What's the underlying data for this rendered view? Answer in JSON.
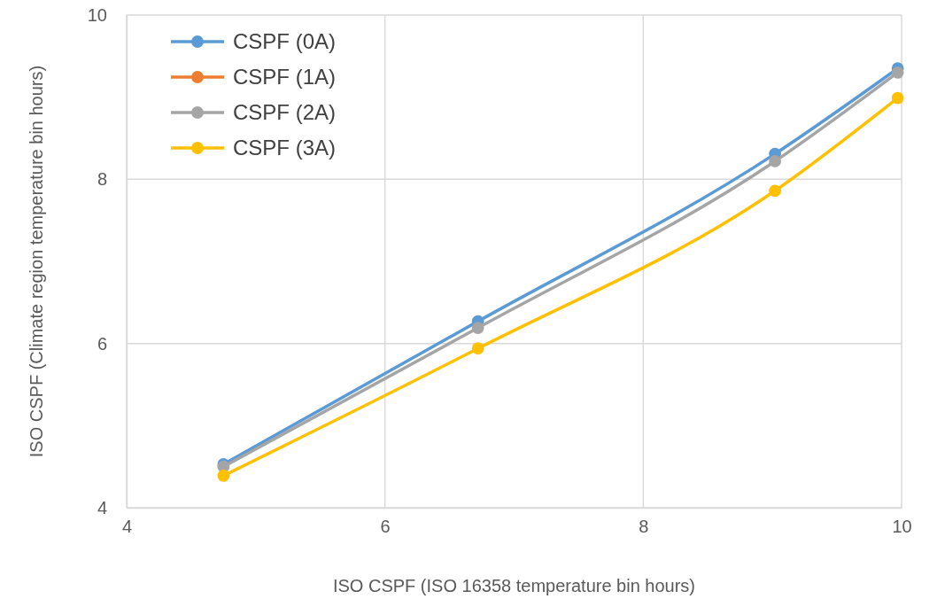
{
  "chart_data": {
    "type": "line",
    "xlabel": "ISO CSPF (ISO 16358 temperature bin hours)",
    "ylabel": "ISO CSPF (Climate region temperature bin hours)",
    "x": [
      4.75,
      6.72,
      9.02,
      9.97
    ],
    "series": [
      {
        "name": "CSPF (0A)",
        "color": "#5b9bd5",
        "values": [
          4.53,
          6.27,
          8.31,
          9.35
        ]
      },
      {
        "name": "CSPF (1A)",
        "color": "#ed7d31",
        "values": [
          null,
          null,
          null,
          null
        ]
      },
      {
        "name": "CSPF (2A)",
        "color": "#a5a5a5",
        "values": [
          4.5,
          6.19,
          8.22,
          9.3
        ]
      },
      {
        "name": "CSPF (3A)",
        "color": "#ffc000",
        "values": [
          4.39,
          5.94,
          7.86,
          8.99
        ]
      }
    ],
    "xlim": [
      4,
      10
    ],
    "xticks": [
      4,
      6,
      8,
      10
    ],
    "ylim": [
      4,
      10
    ],
    "yticks": [
      4,
      6,
      8,
      10
    ],
    "grid": true,
    "legend": "top left",
    "marker": "circle",
    "line_style": "solid"
  }
}
